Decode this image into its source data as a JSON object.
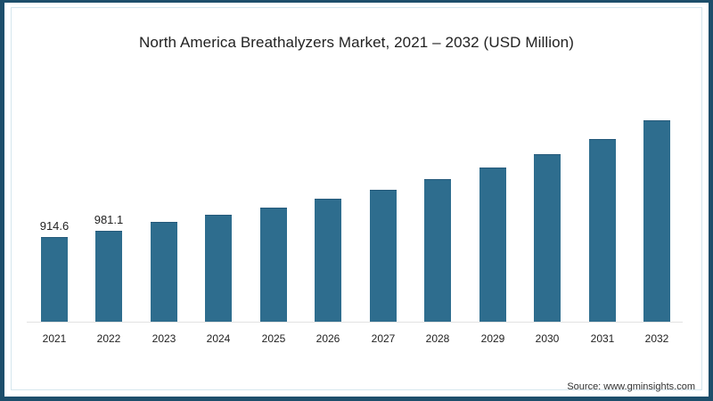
{
  "chart": {
    "title": "North America Breathalyzers Market, 2021 – 2032 (USD Million)",
    "source": "Source: www.gminsights.com",
    "bar_color": "#2e6d8e",
    "border_color": "#1d4e6b",
    "labels": {
      "2021": "914.6",
      "2022": "981.1"
    }
  },
  "chart_data": {
    "type": "bar",
    "title": "North America Breathalyzers Market, 2021 – 2032 (USD Million)",
    "xlabel": "",
    "ylabel": "USD Million",
    "categories": [
      "2021",
      "2022",
      "2023",
      "2024",
      "2025",
      "2026",
      "2027",
      "2028",
      "2029",
      "2030",
      "2031",
      "2032"
    ],
    "values": [
      914.6,
      981.1,
      1075,
      1152,
      1229,
      1325,
      1421,
      1536,
      1670,
      1814,
      1978,
      2179
    ],
    "data_labels": {
      "2021": "914.6",
      "2022": "981.1"
    },
    "ylim": [
      0,
      2300
    ],
    "grid": false,
    "legend": null,
    "y_axis_visible": false,
    "source": "Source: www.gminsights.com"
  }
}
